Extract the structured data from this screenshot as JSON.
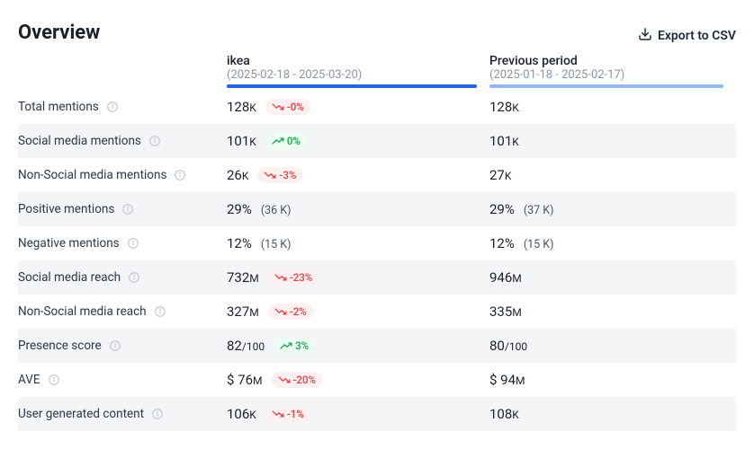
{
  "header": {
    "title": "Overview",
    "export_label": "Export to CSV"
  },
  "columns": {
    "current": {
      "name": "ikea",
      "range": "(2025-02-18 - 2025-03-20)",
      "bar_color": "#2563eb"
    },
    "previous": {
      "name": "Previous period",
      "range": "(2025-01-18 - 2025-02-17)",
      "bar_color": "#93b8f0"
    }
  },
  "rows": [
    {
      "metric": "Total mentions",
      "current": {
        "num": "128",
        "unit": "K"
      },
      "delta": {
        "dir": "down",
        "text": "-0%"
      },
      "previous": {
        "num": "128",
        "unit": "K"
      },
      "alt": false
    },
    {
      "metric": "Social media mentions",
      "current": {
        "num": "101",
        "unit": "K"
      },
      "delta": {
        "dir": "up",
        "text": "0%"
      },
      "previous": {
        "num": "101",
        "unit": "K"
      },
      "alt": true
    },
    {
      "metric": "Non-Social media mentions",
      "current": {
        "num": "26",
        "unit": "K"
      },
      "delta": {
        "dir": "down",
        "text": "-3%"
      },
      "previous": {
        "num": "27",
        "unit": "K"
      },
      "alt": false
    },
    {
      "metric": "Positive mentions",
      "current": {
        "num": "29%",
        "unit": ""
      },
      "sub": "(36 K)",
      "previous": {
        "num": "29%",
        "unit": ""
      },
      "psub": "(37 K)",
      "alt": true
    },
    {
      "metric": "Negative mentions",
      "current": {
        "num": "12%",
        "unit": ""
      },
      "sub": "(15 K)",
      "previous": {
        "num": "12%",
        "unit": ""
      },
      "psub": "(15 K)",
      "alt": false
    },
    {
      "metric": "Social media reach",
      "current": {
        "num": "732",
        "unit": "M"
      },
      "delta": {
        "dir": "down",
        "text": "-23%"
      },
      "previous": {
        "num": "946",
        "unit": "M"
      },
      "alt": true
    },
    {
      "metric": "Non-Social media reach",
      "current": {
        "num": "327",
        "unit": "M"
      },
      "delta": {
        "dir": "down",
        "text": "-2%"
      },
      "previous": {
        "num": "335",
        "unit": "M"
      },
      "alt": false
    },
    {
      "metric": "Presence score",
      "current": {
        "num": "82",
        "unit": ""
      },
      "suffix": "/100",
      "delta": {
        "dir": "up",
        "text": "3%"
      },
      "previous": {
        "num": "80",
        "unit": ""
      },
      "psuffix": "/100",
      "alt": true
    },
    {
      "metric": "AVE",
      "current": {
        "num": "$ 76",
        "unit": "M"
      },
      "delta": {
        "dir": "down",
        "text": "-20%"
      },
      "previous": {
        "num": "$ 94",
        "unit": "M"
      },
      "alt": false
    },
    {
      "metric": "User generated content",
      "current": {
        "num": "106",
        "unit": "K"
      },
      "delta": {
        "dir": "down",
        "text": "-1%"
      },
      "previous": {
        "num": "108",
        "unit": "K"
      },
      "alt": true
    }
  ],
  "styles": {
    "alt_row_bg": "#f4f5f7",
    "delta_down_color": "#e53e3e",
    "delta_down_bg": "#fef0f0",
    "delta_up_color": "#16a34a",
    "delta_up_bg": "#ecfdf3",
    "info_icon_color": "#c0c7d1"
  }
}
